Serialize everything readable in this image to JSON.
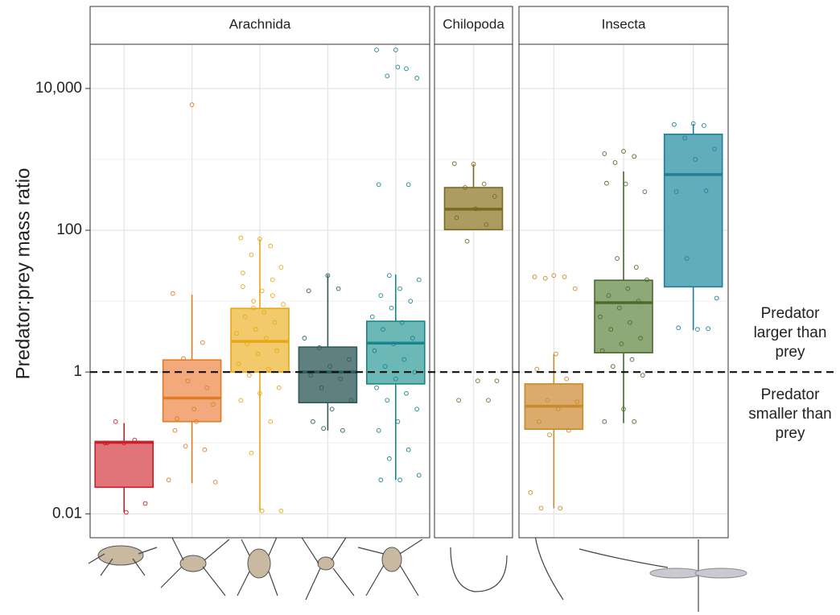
{
  "chart_data": {
    "type": "box",
    "y_label": "Predator:prey mass ratio",
    "log_y": true,
    "ylim": [
      0.0046,
      42000
    ],
    "yticks": [
      0.01,
      1,
      100,
      {
        "value": 10000,
        "label": "10,000"
      }
    ],
    "minor_yticks": [
      0.1,
      10,
      1000
    ],
    "grid": true,
    "hline": 1,
    "annotations": [
      {
        "value": 1,
        "lines": [
          "Predator",
          "larger than",
          "prey"
        ]
      },
      {
        "value": 1,
        "lines": [
          "Predator",
          "smaller than",
          "prey"
        ]
      }
    ],
    "facets": [
      {
        "name": "Arachnida",
        "groups": [
          {
            "color": "#c8202a",
            "fill": "#e07478",
            "whislo": 0.0105,
            "q1": 0.0237,
            "med": 0.102,
            "q3": 0.105,
            "whishi": 0.19,
            "points": [
              0.1,
              0.1,
              0.11,
              0.2,
              0.014,
              0.0105,
              0.1
            ]
          },
          {
            "color": "#e07b25",
            "fill": "#f2aa7c",
            "whislo": 0.027,
            "q1": 0.2,
            "med": 0.43,
            "q3": 1.48,
            "whishi": 12.3,
            "points": [
              5900,
              12.8,
              2.6,
              1.55,
              0.35,
              0.3,
              0.15,
              0.08,
              0.09,
              0.028,
              0.2,
              0.22,
              0.6,
              0.75,
              0.03
            ]
          },
          {
            "color": "#e6a817",
            "fill": "#f2ca6c",
            "whislo": 0.011,
            "q1": 1.0,
            "med": 2.7,
            "q3": 7.9,
            "whishi": 75,
            "points": [
              75,
              78,
              60,
              45,
              30,
              14,
              16,
              12,
              10,
              9,
              7,
              6,
              5,
              4,
              3.5,
              3,
              2.5,
              2,
              1.8,
              1.3,
              1.1,
              0.9,
              0.6,
              0.5,
              0.4,
              0.2,
              0.072,
              0.011,
              0.011,
              25,
              20,
              8
            ]
          },
          {
            "color": "#2d5a5a",
            "fill": "#60807f",
            "whislo": 0.15,
            "q1": 0.37,
            "med": 1,
            "q3": 2.25,
            "whishi": 23.7,
            "points": [
              23,
              14,
              15,
              2.2,
              1.5,
              1.2,
              0.9,
              0.8,
              0.6,
              0.4,
              0.3,
              0.2,
              0.15,
              0.16,
              3
            ]
          },
          {
            "color": "#17868a",
            "fill": "#6cb8b6",
            "whislo": 0.03,
            "q1": 0.68,
            "med": 2.56,
            "q3": 5.2,
            "whishi": 23.7,
            "points": [
              35000,
              35000,
              19000,
              15000,
              14000,
              20000,
              440,
              440,
              23,
              20,
              15,
              12,
              10,
              8,
              6,
              5,
              4,
              3,
              2.5,
              2,
              1.5,
              1.2,
              1,
              0.8,
              0.6,
              0.5,
              0.4,
              0.3,
              0.2,
              0.15,
              0.08,
              0.06,
              0.035,
              0.03,
              0.03
            ]
          }
        ]
      },
      {
        "name": "Chilopoda",
        "groups": [
          {
            "color": "#7a6a1f",
            "fill": "#ad9c62",
            "whislo": 102,
            "q1": 102,
            "med": 198,
            "q3": 400,
            "whishi": 855,
            "points": [
              855,
              870,
              450,
              400,
              300,
              200,
              150,
              120,
              70,
              0.75,
              0.75,
              0.4,
              0.4
            ]
          }
        ]
      },
      {
        "name": "Insecta",
        "groups": [
          {
            "color": "#c98a2a",
            "fill": "#dbab6e",
            "whislo": 0.012,
            "q1": 0.156,
            "med": 0.33,
            "q3": 0.68,
            "whishi": 1.78,
            "points": [
              23,
              22,
              22,
              21,
              15,
              1.8,
              1.1,
              0.8,
              0.4,
              0.38,
              0.3,
              0.2,
              0.15,
              0.13,
              0.02,
              0.012,
              0.012
            ]
          },
          {
            "color": "#4a6b2a",
            "fill": "#8ea878",
            "whislo": 0.19,
            "q1": 1.87,
            "med": 9.5,
            "q3": 19.7,
            "whishi": 675,
            "points": [
              1300,
              1200,
              1100,
              900,
              350,
              450,
              460,
              30,
              40,
              20,
              15,
              12,
              10,
              8,
              6,
              5,
              4,
              3,
              2.5,
              2,
              1.5,
              1.2,
              0.9,
              0.3,
              0.2,
              0.2
            ]
          },
          {
            "color": "#1f7f95",
            "fill": "#62adbb",
            "whislo": 3.9,
            "q1": 15.9,
            "med": 610,
            "q3": 2260,
            "whishi": 3160,
            "points": [
              3200,
              3100,
              3000,
              2000,
              1400,
              1000,
              350,
              360,
              40,
              11,
              4,
              4.2,
              4.1
            ]
          }
        ]
      }
    ]
  }
}
